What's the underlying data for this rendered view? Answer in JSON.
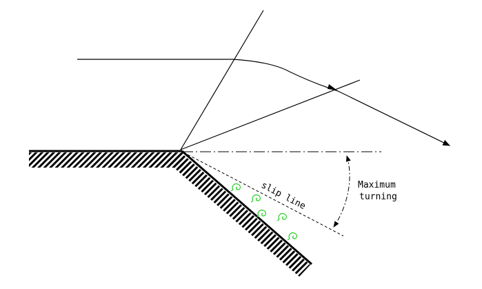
{
  "labels": {
    "slip_line": "slip line",
    "max_turning_line1": "Maximum",
    "max_turning_line2": "turning"
  },
  "colors": {
    "ink": "#000000",
    "vortex": "#22cc22"
  }
}
